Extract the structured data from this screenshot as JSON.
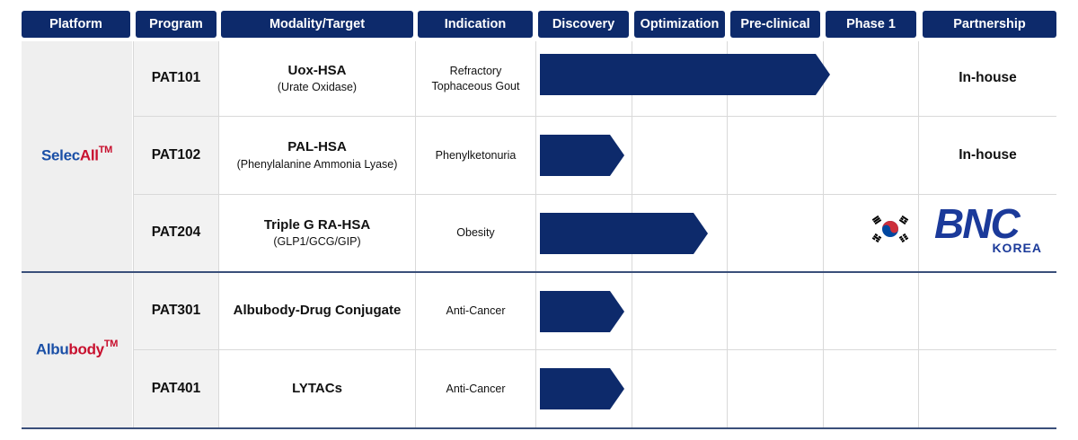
{
  "headers": {
    "platform": "Platform",
    "program": "Program",
    "modality": "Modality/Target",
    "indication": "Indication",
    "discovery": "Discovery",
    "optimization": "Optimization",
    "preclinical": "Pre-clinical",
    "phase1": "Phase 1",
    "partnership": "Partnership"
  },
  "platforms": [
    {
      "prefix": "Selec",
      "highlight": "All",
      "tm": "TM",
      "color_prefix": "#1a4fa6",
      "color_highlight": "#c8102e"
    },
    {
      "prefix": "Albu",
      "highlight": "body",
      "tm": "TM",
      "color_prefix": "#1a4fa6",
      "color_highlight": "#c8102e"
    }
  ],
  "rows": [
    {
      "program": "PAT101",
      "modality": "Uox-HSA",
      "modality_sub": "(Urate Oxidase)",
      "indication": "Refractory\nTophaceous Gout",
      "progress_stage": 3,
      "partnership": "In-house"
    },
    {
      "program": "PAT102",
      "modality": "PAL-HSA",
      "modality_sub": "(Phenylalanine Ammonia Lyase)",
      "indication": "Phenylketonuria",
      "progress_stage": 1,
      "partnership": "In-house"
    },
    {
      "program": "PAT204",
      "modality": "Triple G RA-HSA",
      "modality_sub": "(GLP1/GCG/GIP)",
      "indication": "Obesity",
      "progress_stage": 2,
      "partnership": ""
    },
    {
      "program": "PAT301",
      "modality": "Albubody-Drug Conjugate",
      "modality_sub": "",
      "indication": "Anti-Cancer",
      "progress_stage": 1,
      "partnership": ""
    },
    {
      "program": "PAT401",
      "modality": "LYTACs",
      "modality_sub": "",
      "indication": "Anti-Cancer",
      "progress_stage": 1,
      "partnership": ""
    }
  ],
  "partner_logo": {
    "main": "BNC",
    "sub": "KOREA",
    "flag_icon": "south-korea-flag-icon"
  },
  "colors": {
    "header_bg": "#0d2a6b",
    "bar": "#0d2a6b",
    "logo": "#1b3a9a"
  }
}
